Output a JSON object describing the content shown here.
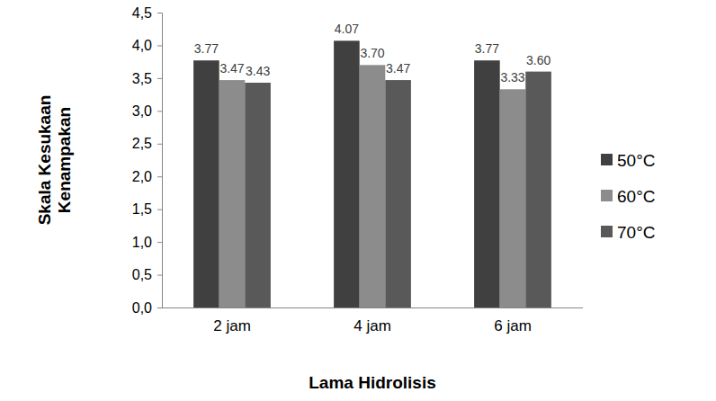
{
  "chart_data": {
    "type": "bar",
    "categories": [
      "2 jam",
      "4 jam",
      "6 jam"
    ],
    "series": [
      {
        "name": "50°C",
        "color": "#404040",
        "values": [
          3.77,
          4.07,
          3.77
        ],
        "value_labels": [
          "3.77",
          "4.07",
          "3.77"
        ]
      },
      {
        "name": "60°C",
        "color": "#8c8c8c",
        "values": [
          3.47,
          3.7,
          3.33
        ],
        "value_labels": [
          "3.47",
          "3.70",
          "3.33"
        ]
      },
      {
        "name": "70°C",
        "color": "#595959",
        "values": [
          3.43,
          3.47,
          3.6
        ],
        "value_labels": [
          "3.43",
          "3.47",
          "3.60"
        ]
      }
    ],
    "x_label": "Lama Hidrolisis",
    "y_label": [
      "Skala Kesukaan",
      "Kenampakan"
    ],
    "ylim": [
      0,
      4.5
    ],
    "yticks": [
      {
        "value": 0,
        "label": "0,0"
      },
      {
        "value": 0.5,
        "label": "0,5"
      },
      {
        "value": 1,
        "label": "1,0"
      },
      {
        "value": 1.5,
        "label": "1,5"
      },
      {
        "value": 2,
        "label": "2,0"
      },
      {
        "value": 2.5,
        "label": "2,5"
      },
      {
        "value": 3,
        "label": "3,0"
      },
      {
        "value": 3.5,
        "label": "3,5"
      },
      {
        "value": 4,
        "label": "4,0"
      },
      {
        "value": 4.5,
        "label": "4,5"
      }
    ],
    "grid": false,
    "legend": "right",
    "data_labels": true
  }
}
